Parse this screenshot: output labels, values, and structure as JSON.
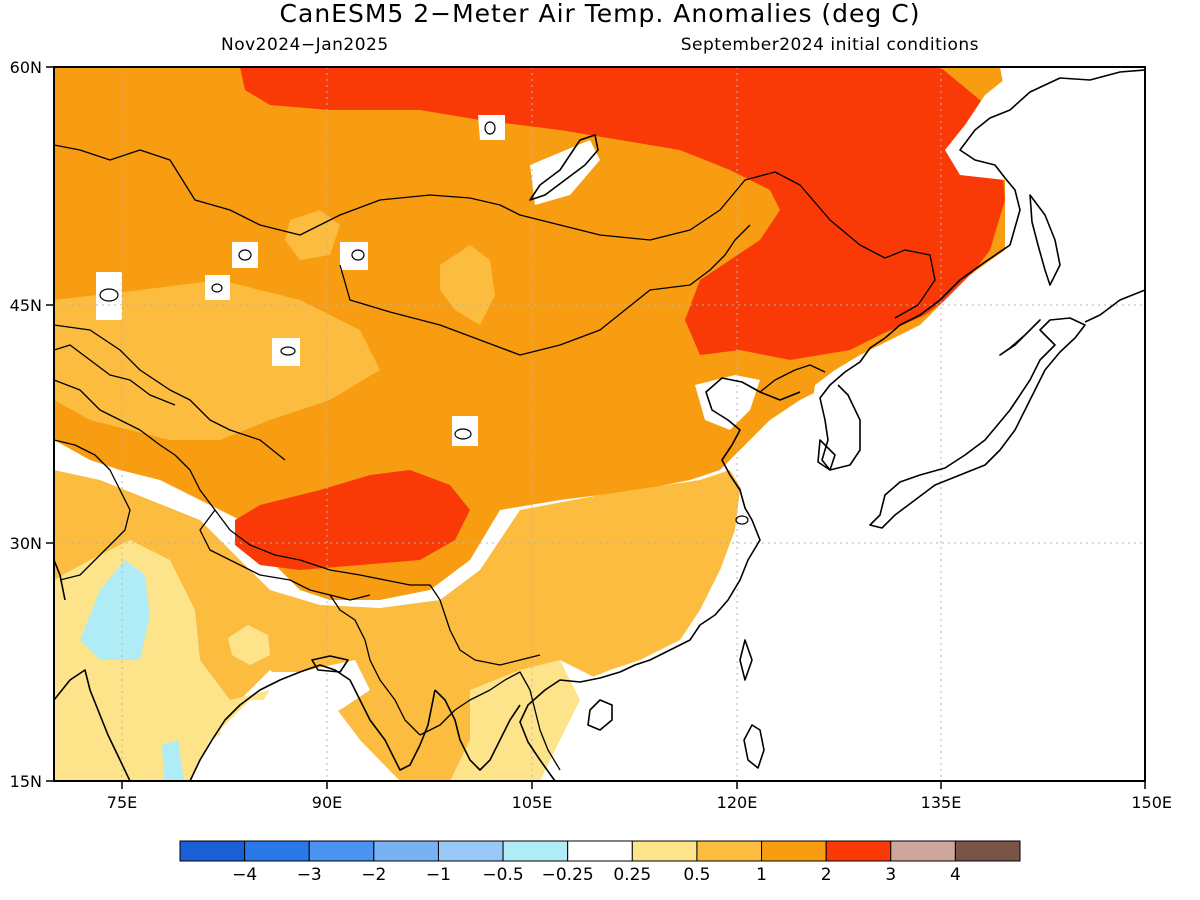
{
  "title": "CanESM5 2−Meter Air Temp. Anomalies (deg C)",
  "subtitle_left": "Nov2024−Jan2025",
  "subtitle_right": "September2024 initial conditions",
  "map": {
    "lon_range": [
      70,
      150
    ],
    "lat_range": [
      15,
      60
    ],
    "lon_ticks": [
      {
        "value": 75,
        "label": "75E"
      },
      {
        "value": 90,
        "label": "90E"
      },
      {
        "value": 105,
        "label": "105E"
      },
      {
        "value": 120,
        "label": "120E"
      },
      {
        "value": 135,
        "label": "135E"
      },
      {
        "value": 150,
        "label": "150E"
      }
    ],
    "lat_ticks": [
      {
        "value": 60,
        "label": "60N"
      },
      {
        "value": 45,
        "label": "45N"
      },
      {
        "value": 30,
        "label": "30N"
      },
      {
        "value": 15,
        "label": "15N"
      }
    ],
    "grid": true
  },
  "colorbar": {
    "colors": [
      "#1a5fd6",
      "#2a78ea",
      "#4a93f1",
      "#78b2f4",
      "#98c8f6",
      "#b0ecf6",
      "#ffffff",
      "#fde48a",
      "#fbbc3f",
      "#f89c12",
      "#fa3a06",
      "#cfa69c",
      "#7a5447"
    ],
    "labels": [
      "−4",
      "−3",
      "−2",
      "−1",
      "−0.5",
      "−0.25",
      "0.25",
      "0.5",
      "1",
      "2",
      "3",
      "4"
    ]
  }
}
